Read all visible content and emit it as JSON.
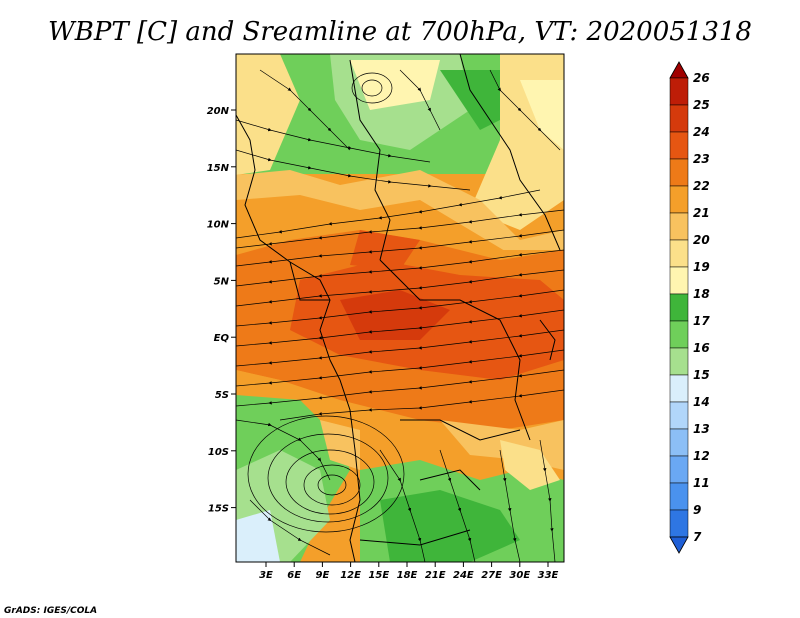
{
  "title": "WBPT [C] and Sreamline at 700hPa, VT: 2020051318",
  "credit": "GrADS: IGES/COLA",
  "map": {
    "x_ticks": [
      "3E",
      "6E",
      "9E",
      "12E",
      "15E",
      "18E",
      "21E",
      "24E",
      "27E",
      "30E",
      "33E"
    ],
    "y_ticks": [
      "20N",
      "15N",
      "10N",
      "5N",
      "EQ",
      "5S",
      "10S",
      "15S"
    ]
  },
  "colorbar": {
    "labels": [
      "7",
      "9",
      "11",
      "12",
      "13",
      "14",
      "15",
      "16",
      "17",
      "18",
      "19",
      "20",
      "21",
      "22",
      "23",
      "24",
      "25",
      "26"
    ],
    "colors": [
      "#1f5fd6",
      "#2e76e3",
      "#4a92ee",
      "#6aa8f3",
      "#8cbff6",
      "#b1d6fa",
      "#daeffb",
      "#a6e08e",
      "#6fcf5a",
      "#3fb53a",
      "#fff5b0",
      "#fbe08a",
      "#f8c25f",
      "#f49f2a",
      "#ee7a18",
      "#e65612",
      "#d53a0c",
      "#be1d07",
      "#a00000"
    ]
  }
}
